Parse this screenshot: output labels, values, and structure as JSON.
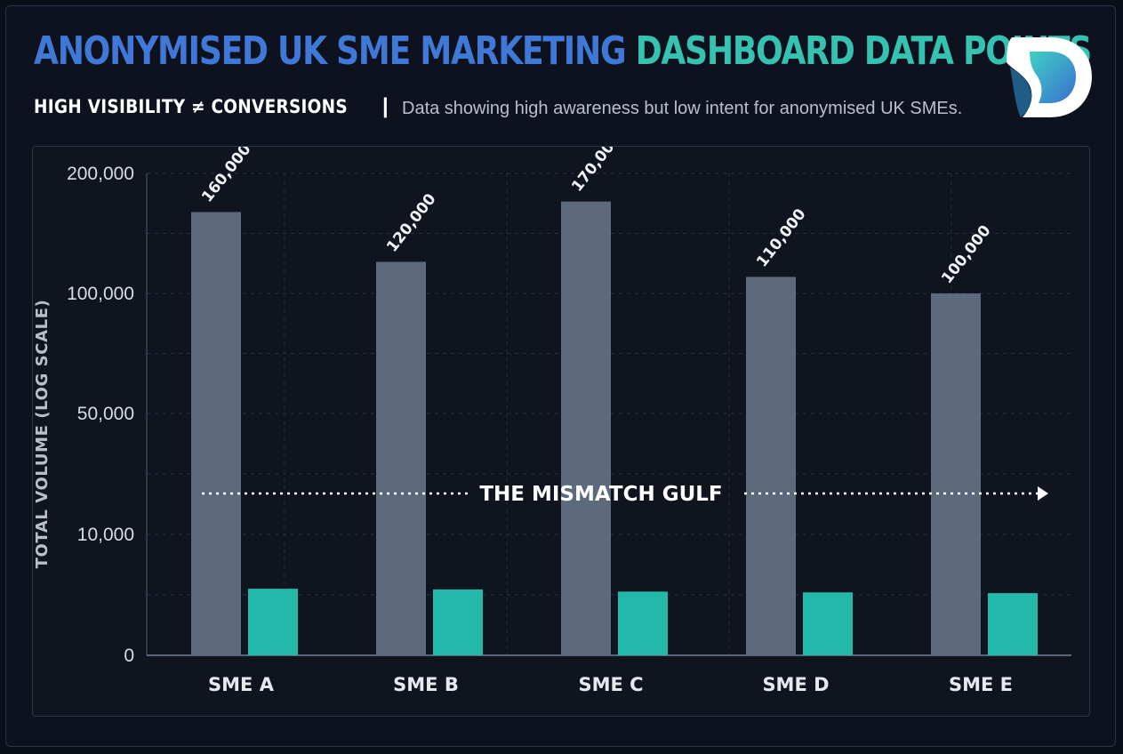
{
  "header": {
    "title_part1": "ANONYMISED UK SME MARKETING",
    "title_part2": "DASHBOARD DATA POINTS",
    "subtitle_strong": "HIGH VISIBILITY ≠ CONVERSIONS",
    "subtitle_separator": "|",
    "subtitle_desc": "Data showing high awareness but low intent for anonymised UK SMEs."
  },
  "colors": {
    "title_blue": "#3f78d6",
    "title_teal": "#36c2b0",
    "bar_primary": "#5d6a7e",
    "bar_secondary": "#22b8aa",
    "background": "#0d121e"
  },
  "logo": {
    "icon": "d-letter-logo-icon"
  },
  "chart_data": {
    "type": "bar",
    "categories": [
      "SME A",
      "SME B",
      "SME C",
      "SME D",
      "SME E"
    ],
    "series": [
      {
        "values": [
          160000,
          120000,
          170000,
          110000,
          100000
        ]
      },
      {
        "values": [
          1900,
          1850,
          1700,
          1650,
          1600
        ]
      }
    ],
    "data_labels": [
      "160,000",
      "120,000",
      "170,000",
      "110,000",
      "100,000"
    ],
    "ylabel": "TOTAL VOLUME (LOG SCALE)",
    "y_ticks": [
      0,
      10000,
      50000,
      100000,
      200000
    ],
    "y_tick_labels": [
      "0",
      "10,000",
      "50,000",
      "100,000",
      "200,000"
    ],
    "ylim": [
      0,
      200000
    ],
    "y_scale": "log",
    "grid": true,
    "annotation": "THE MISMATCH GULF"
  }
}
